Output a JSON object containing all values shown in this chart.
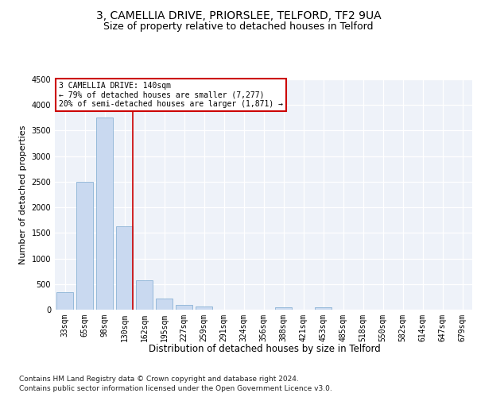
{
  "title1": "3, CAMELLIA DRIVE, PRIORSLEE, TELFORD, TF2 9UA",
  "title2": "Size of property relative to detached houses in Telford",
  "xlabel": "Distribution of detached houses by size in Telford",
  "ylabel": "Number of detached properties",
  "categories": [
    "33sqm",
    "65sqm",
    "98sqm",
    "130sqm",
    "162sqm",
    "195sqm",
    "227sqm",
    "259sqm",
    "291sqm",
    "324sqm",
    "356sqm",
    "388sqm",
    "421sqm",
    "453sqm",
    "485sqm",
    "518sqm",
    "550sqm",
    "582sqm",
    "614sqm",
    "647sqm",
    "679sqm"
  ],
  "values": [
    340,
    2500,
    3750,
    1625,
    580,
    220,
    100,
    60,
    0,
    0,
    0,
    50,
    0,
    50,
    0,
    0,
    0,
    0,
    0,
    0,
    0
  ],
  "bar_color": "#c9d9f0",
  "bar_edge_color": "#7aa8d0",
  "vline_color": "#cc0000",
  "vline_x_index": 3,
  "annotation_text": "3 CAMELLIA DRIVE: 140sqm\n← 79% of detached houses are smaller (7,277)\n20% of semi-detached houses are larger (1,871) →",
  "annotation_box_color": "white",
  "annotation_box_edge_color": "#cc0000",
  "ylim": [
    0,
    4500
  ],
  "yticks": [
    0,
    500,
    1000,
    1500,
    2000,
    2500,
    3000,
    3500,
    4000,
    4500
  ],
  "footer1": "Contains HM Land Registry data © Crown copyright and database right 2024.",
  "footer2": "Contains public sector information licensed under the Open Government Licence v3.0.",
  "background_color": "#eef2f9",
  "title1_fontsize": 10,
  "title2_fontsize": 9,
  "tick_fontsize": 7,
  "ylabel_fontsize": 8,
  "xlabel_fontsize": 8.5,
  "footer_fontsize": 6.5
}
